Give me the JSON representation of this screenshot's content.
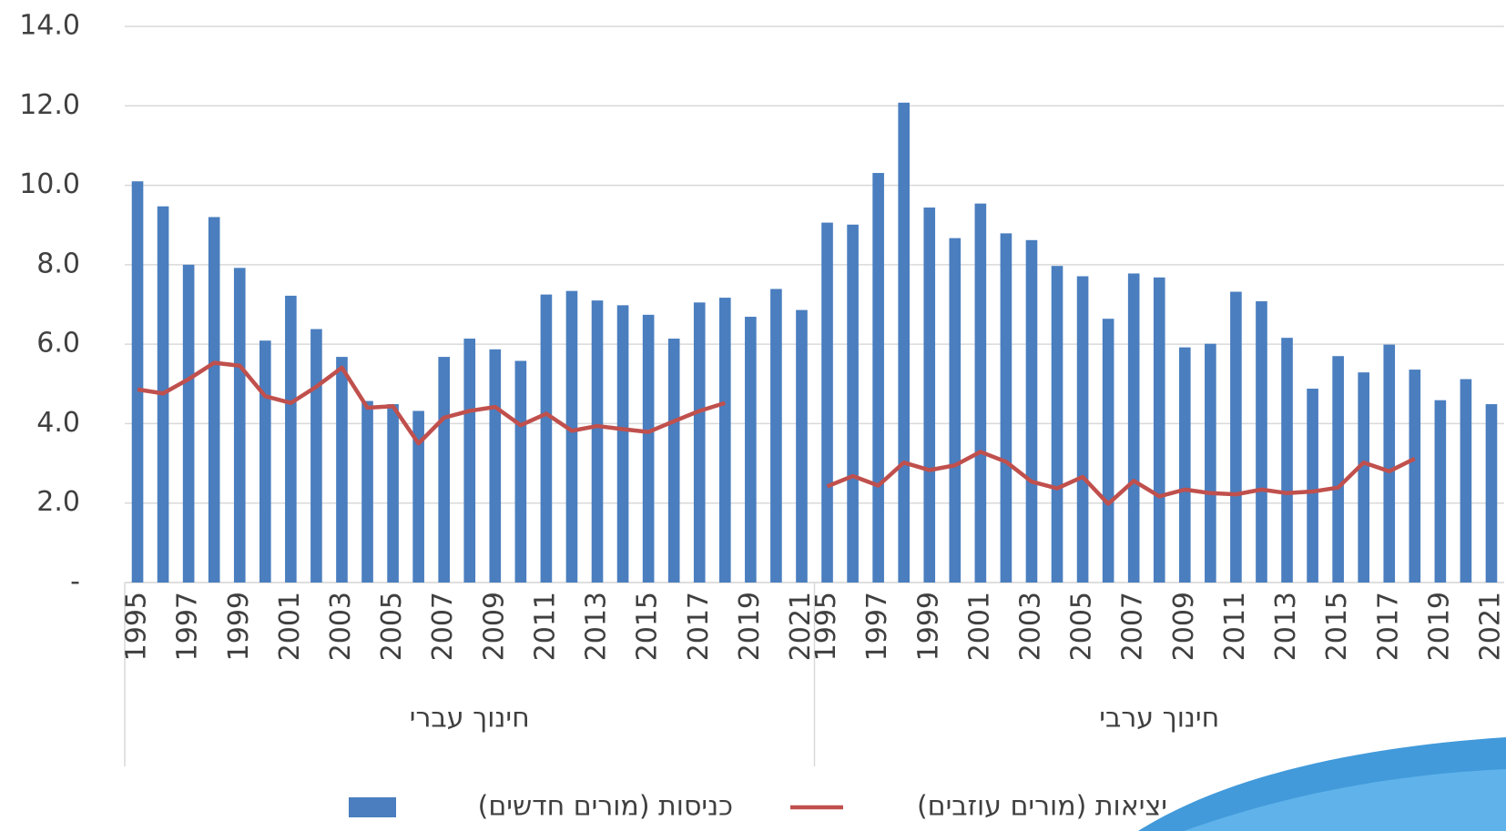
{
  "chart_data": {
    "type": "bar",
    "groups": [
      {
        "label": "חינוך עברי",
        "categories": [
          "1995",
          null,
          "1997",
          null,
          "1999",
          null,
          "2001",
          null,
          "2003",
          null,
          "2005",
          null,
          "2007",
          null,
          "2009",
          null,
          "2011",
          null,
          "2013",
          null,
          "2015",
          null,
          "2017",
          null,
          "2019",
          null,
          "2021"
        ]
      },
      {
        "label": "חינוך ערבי",
        "categories": [
          "1995",
          null,
          "1997",
          null,
          "1999",
          null,
          "2001",
          null,
          "2003",
          null,
          "2005",
          null,
          "2007",
          null,
          "2009",
          null,
          "2011",
          null,
          "2013",
          null,
          "2015",
          null,
          "2017",
          null,
          "2019",
          null,
          "2021"
        ]
      }
    ],
    "series": [
      {
        "name": "כניסות (מורים חדשים)",
        "type": "bar",
        "color": "#4a7ebf",
        "values": [
          10.1,
          9.47,
          8.0,
          9.2,
          7.92,
          6.09,
          7.22,
          6.38,
          5.68,
          4.57,
          4.49,
          4.32,
          5.68,
          6.14,
          5.87,
          5.58,
          7.25,
          7.34,
          7.1,
          6.98,
          6.74,
          6.14,
          7.05,
          7.17,
          6.69,
          7.39,
          6.86,
          9.06,
          9.01,
          10.31,
          12.08,
          9.44,
          8.67,
          9.54,
          8.79,
          8.62,
          7.97,
          7.71,
          6.64,
          7.78,
          7.68,
          5.92,
          6.01,
          7.32,
          7.08,
          6.16,
          4.88,
          5.7,
          5.29,
          5.99,
          5.36,
          4.59,
          5.12,
          4.49
        ]
      },
      {
        "name": "יציאות (מורים עוזבים)",
        "type": "line",
        "color": "#c0504d",
        "values": [
          4.86,
          4.76,
          5.12,
          5.53,
          5.46,
          4.69,
          4.52,
          4.93,
          5.41,
          4.4,
          4.44,
          3.5,
          4.15,
          4.32,
          4.42,
          3.96,
          4.25,
          3.82,
          3.94,
          3.86,
          3.79,
          4.06,
          4.32,
          4.52,
          null,
          null,
          null,
          2.42,
          2.68,
          2.44,
          3.02,
          2.83,
          2.95,
          3.29,
          3.04,
          2.54,
          2.37,
          2.66,
          1.98,
          2.56,
          2.17,
          2.34,
          2.25,
          2.22,
          2.34,
          2.25,
          2.29,
          2.39,
          3.02,
          2.8,
          3.12,
          null,
          null,
          null
        ]
      }
    ],
    "ylim": [
      0,
      14
    ],
    "yticks": [
      {
        "value": 0,
        "label": "-"
      },
      {
        "value": 2,
        "label": "2.0"
      },
      {
        "value": 4,
        "label": "4.0"
      },
      {
        "value": 6,
        "label": "6.0"
      },
      {
        "value": 8,
        "label": "8.0"
      },
      {
        "value": 10,
        "label": "10.0"
      },
      {
        "value": 12,
        "label": "12.0"
      },
      {
        "value": 14,
        "label": "14.0"
      }
    ],
    "grid": true
  }
}
